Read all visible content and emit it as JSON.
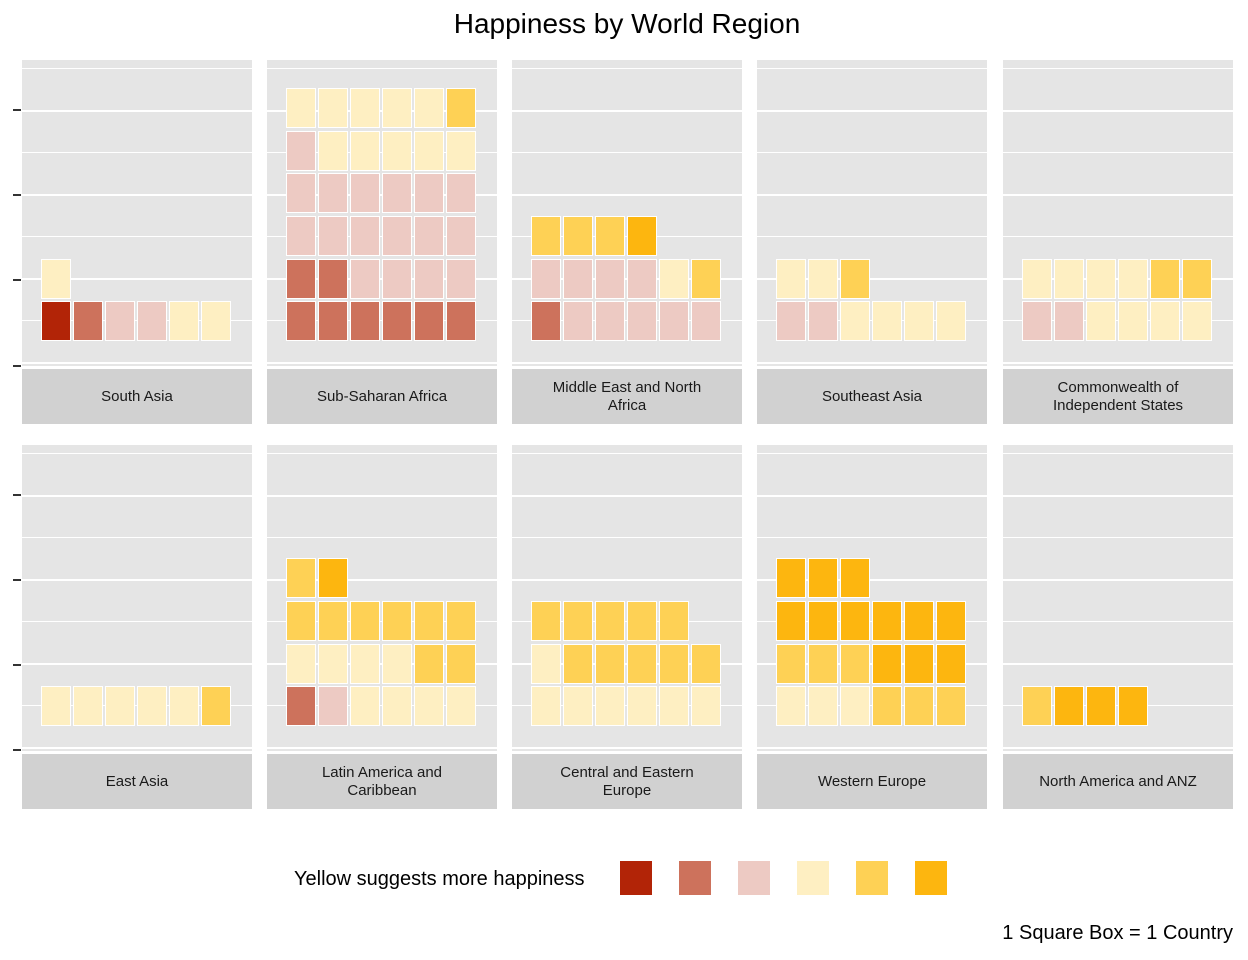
{
  "chart_data": {
    "type": "waffle",
    "title": "Happiness by World Region",
    "caption": "1 Square Box = 1 Country",
    "legend": {
      "title": "Yellow suggests more happiness",
      "position": "bottom",
      "colors": [
        "#b22407",
        "#cd725c",
        "#edcac3",
        "#feefc2",
        "#fed155",
        "#fdb60f"
      ]
    },
    "unit": "country",
    "grid": true,
    "panels": [
      {
        "name": "South Asia",
        "label_lines": [
          "South Asia"
        ],
        "counts": [
          1,
          1,
          2,
          3,
          0,
          0
        ]
      },
      {
        "name": "Sub-Saharan Africa",
        "label_lines": [
          "Sub-Saharan Africa"
        ],
        "counts": [
          0,
          8,
          17,
          10,
          1,
          0
        ]
      },
      {
        "name": "Middle East and North Africa",
        "label_lines": [
          "Middle East and North",
          "Africa"
        ],
        "counts": [
          0,
          1,
          9,
          1,
          4,
          1
        ]
      },
      {
        "name": "Southeast Asia",
        "label_lines": [
          "Southeast Asia"
        ],
        "counts": [
          0,
          0,
          2,
          6,
          1,
          0
        ]
      },
      {
        "name": "Commonwealth of Independent States",
        "label_lines": [
          "Commonwealth of",
          "Independent States"
        ],
        "counts": [
          0,
          0,
          2,
          8,
          2,
          0
        ]
      },
      {
        "name": "East Asia",
        "label_lines": [
          "East Asia"
        ],
        "counts": [
          0,
          0,
          0,
          5,
          1,
          0
        ]
      },
      {
        "name": "Latin America and Caribbean",
        "label_lines": [
          "Latin America and",
          "Caribbean"
        ],
        "counts": [
          0,
          1,
          1,
          8,
          9,
          1
        ]
      },
      {
        "name": "Central and Eastern Europe",
        "label_lines": [
          "Central and Eastern",
          "Europe"
        ],
        "counts": [
          0,
          0,
          0,
          7,
          10,
          0
        ]
      },
      {
        "name": "Western Europe",
        "label_lines": [
          "Western Europe"
        ],
        "counts": [
          0,
          0,
          0,
          3,
          6,
          12
        ]
      },
      {
        "name": "North America and ANZ",
        "label_lines": [
          "North America and ANZ"
        ],
        "counts": [
          0,
          0,
          0,
          0,
          1,
          3
        ]
      }
    ]
  }
}
